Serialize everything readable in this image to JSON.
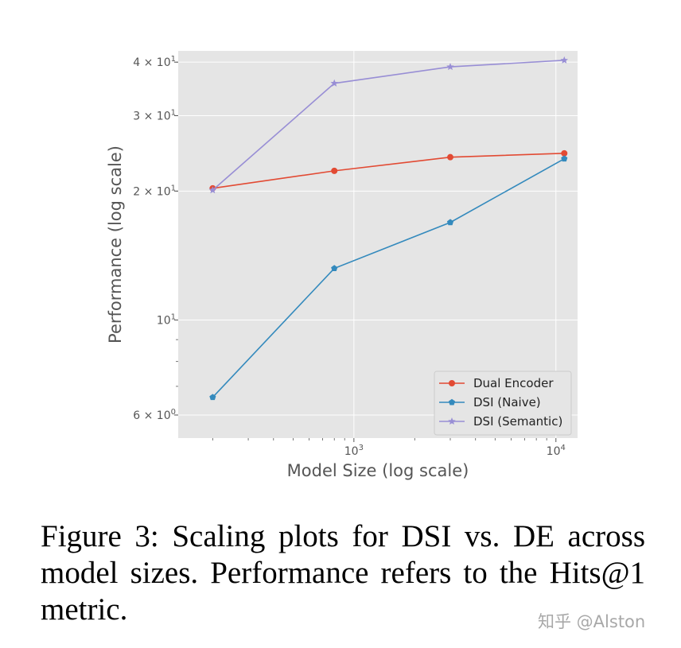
{
  "figure": {
    "caption": "Figure 3:  Scaling plots for DSI vs. DE across model sizes. Performance refers to the Hits@1 metric.",
    "watermark": "知乎 @Alston"
  },
  "chart_data": {
    "type": "line",
    "title": "",
    "xlabel": "Model Size (log scale)",
    "ylabel": "Performance (log scale)",
    "xscale": "log",
    "yscale": "log",
    "xlim": [
      135,
      12800
    ],
    "ylim": [
      5.3,
      42.5
    ],
    "x_ticks": [
      {
        "value": 1000,
        "base": "10",
        "exp": "3"
      },
      {
        "value": 10000,
        "base": "10",
        "exp": "4"
      }
    ],
    "y_ticks": [
      {
        "value": 6,
        "base": "6 × 10",
        "exp": "0"
      },
      {
        "value": 10,
        "base": "10",
        "exp": "1"
      },
      {
        "value": 20,
        "base": "2 × 10",
        "exp": "1"
      },
      {
        "value": 30,
        "base": "3 × 10",
        "exp": "1"
      },
      {
        "value": 40,
        "base": "4 × 10",
        "exp": "1"
      }
    ],
    "grid": true,
    "legend_position": "lower-right",
    "x": [
      200,
      800,
      3000,
      11000
    ],
    "series": [
      {
        "name": "Dual Encoder",
        "values": [
          20.3,
          22.3,
          24.0,
          24.5
        ],
        "color": "#e24a33",
        "marker": "circle"
      },
      {
        "name": "DSI (Naive)",
        "values": [
          6.6,
          13.2,
          16.9,
          23.8
        ],
        "color": "#348abd",
        "marker": "pentagon"
      },
      {
        "name": "DSI (Semantic)",
        "values": [
          20.1,
          35.7,
          39.0,
          40.4
        ],
        "color": "#988ed5",
        "marker": "star"
      }
    ]
  }
}
